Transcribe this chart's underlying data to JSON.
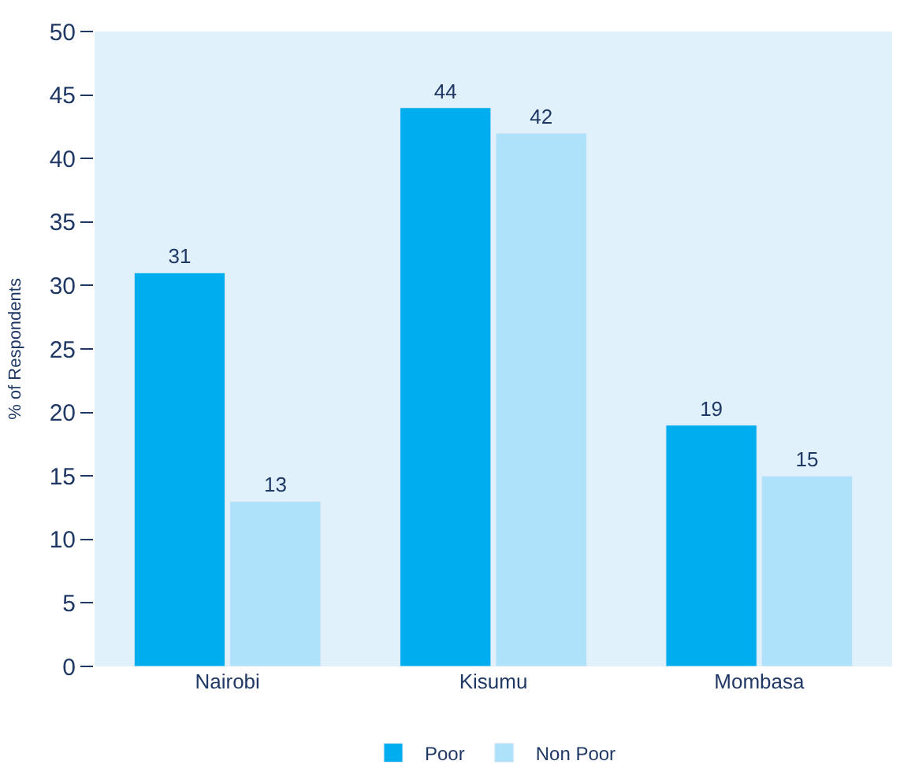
{
  "chart_data": {
    "type": "bar",
    "ylabel": "% of Respondents",
    "categories": [
      "Nairobi",
      "Kisumu",
      "Mombasa"
    ],
    "series": [
      {
        "name": "Poor",
        "color": "#00aeef",
        "values": [
          31,
          44,
          19
        ]
      },
      {
        "name": "Non Poor",
        "color": "#aee1fa",
        "values": [
          13,
          42,
          15
        ]
      }
    ],
    "ylim": [
      0,
      50
    ],
    "yticks": [
      0,
      5,
      10,
      15,
      20,
      25,
      30,
      35,
      40,
      45,
      50
    ],
    "data_labels": true,
    "grid": false,
    "legend": "bottom"
  }
}
